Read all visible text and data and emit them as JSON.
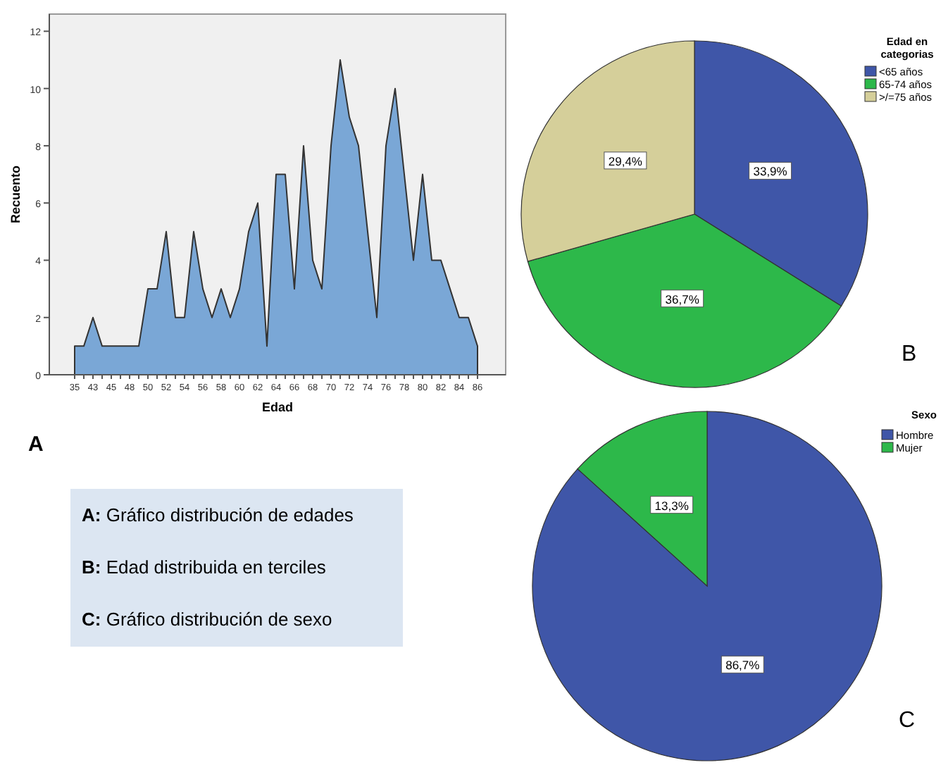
{
  "chart_data": [
    {
      "type": "area",
      "xlabel": "Edad",
      "ylabel": "Recuento",
      "annotations": [
        "A"
      ],
      "categories": [
        "35",
        null,
        "43",
        null,
        "45",
        null,
        "48",
        null,
        "50",
        null,
        "52",
        null,
        "54",
        null,
        "56",
        null,
        "58",
        null,
        "60",
        null,
        "62",
        null,
        "64",
        null,
        "66",
        null,
        "68",
        null,
        "70",
        null,
        "72",
        null,
        "74",
        null,
        "76",
        null,
        "78",
        null,
        "80",
        null,
        "82",
        null,
        "84",
        null,
        "86"
      ],
      "values": [
        1,
        1,
        2,
        1,
        1,
        1,
        1,
        1,
        3,
        3,
        5,
        2,
        2,
        5,
        3,
        2,
        3,
        2,
        3,
        5,
        6,
        1,
        7,
        7,
        3,
        8,
        4,
        3,
        8,
        11,
        9,
        8,
        5,
        2,
        8,
        10,
        7,
        4,
        7,
        4,
        4,
        3,
        2,
        2,
        1
      ],
      "color": "#7aa7d6",
      "ylim": [
        0,
        12.6
      ],
      "yticks": [
        0,
        2,
        4,
        6,
        8,
        10,
        12
      ]
    },
    {
      "type": "pie",
      "legend_title": "Edad en categorias",
      "legend": "top right",
      "annotations": [
        "B"
      ],
      "categories": [
        "<65 años",
        "65-74 años",
        ">/=75 años"
      ],
      "values": [
        33.9,
        36.7,
        29.4
      ],
      "colors": [
        "#3f56a8",
        "#2db84a",
        "#d5cf9a"
      ],
      "value_labels": [
        "33,9%",
        "36,7%",
        "29,4%"
      ]
    },
    {
      "type": "pie",
      "legend_title": "Sexo",
      "legend": "top right",
      "annotations": [
        "C"
      ],
      "categories": [
        "Hombre",
        "Mujer"
      ],
      "values": [
        86.7,
        13.3
      ],
      "colors": [
        "#3f56a8",
        "#2db84a"
      ],
      "value_labels": [
        "86,7%",
        "13,3%"
      ]
    },
    {
      "type": "other",
      "annotations": [
        "A: Gráfico distribución de edades",
        "B: Edad distribuida en terciles",
        "C: Gráfico distribución de sexo"
      ]
    }
  ]
}
